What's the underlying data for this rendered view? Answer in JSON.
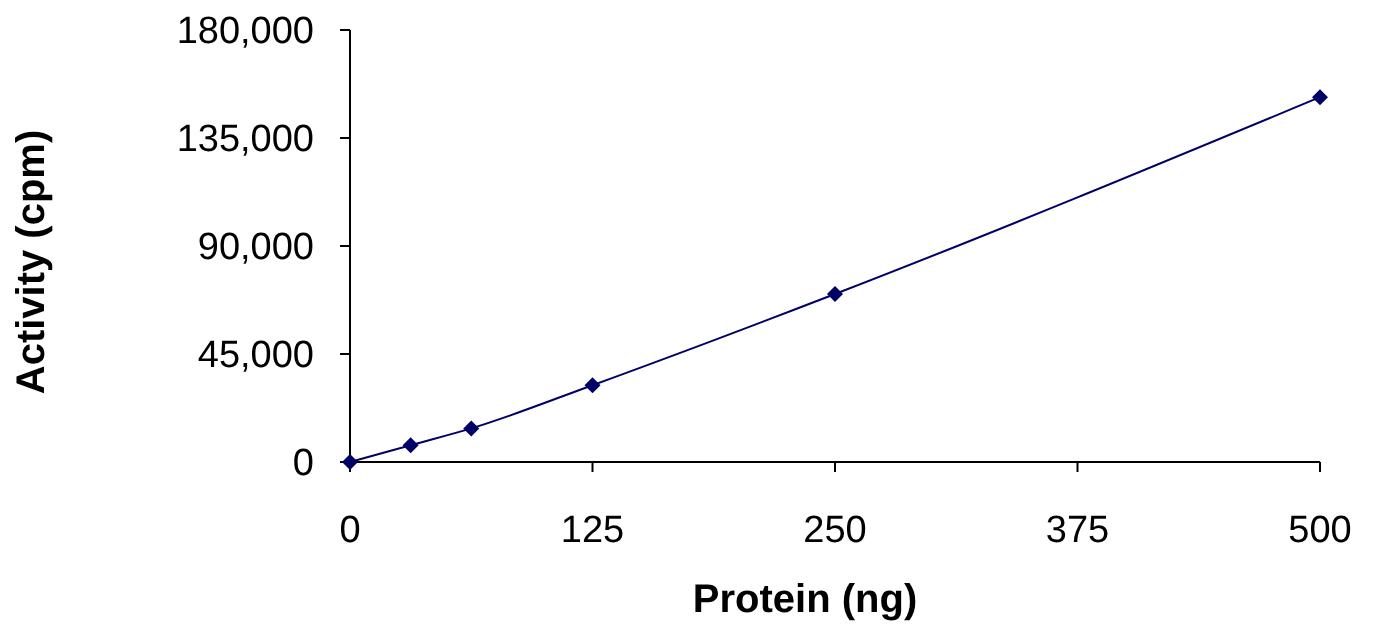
{
  "chart_data": {
    "type": "line",
    "xlabel": "Protein (ng)",
    "ylabel": "Activity (cpm)",
    "x": [
      0,
      31.25,
      62.5,
      125,
      250,
      500
    ],
    "series": [
      {
        "color": "#000066",
        "values": [
          0,
          7000,
          14000,
          32000,
          70000,
          152000
        ]
      }
    ],
    "xlim": [
      0,
      500
    ],
    "xticks": [
      0,
      125,
      250,
      375,
      500
    ],
    "ylim": [
      0,
      180000
    ],
    "yticks": [
      {
        "value": 0,
        "label": "0"
      },
      {
        "value": 45000,
        "label": "45,000"
      },
      {
        "value": 90000,
        "label": "90,000"
      },
      {
        "value": 135000,
        "label": "135,000"
      },
      {
        "value": 180000,
        "label": "180,000"
      }
    ],
    "marker": "diamond",
    "line_style": "solid"
  }
}
